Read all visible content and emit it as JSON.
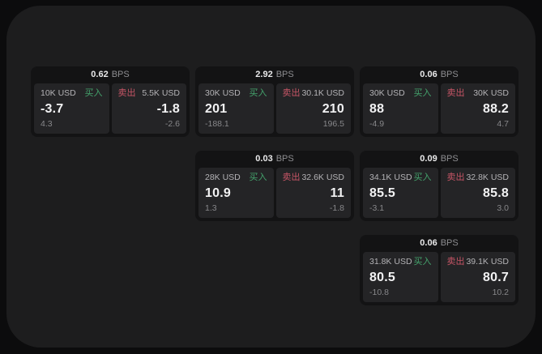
{
  "labels": {
    "bps_unit": "BPS",
    "buy": "买入",
    "sell": "卖出"
  },
  "colors": {
    "outer_bg": "#0c0c0d",
    "panel_bg": "#1d1d1e",
    "card_bg": "#131314",
    "subpanel_bg": "#242426",
    "buy_green": "#44a36c",
    "sell_red": "#c75566"
  },
  "cards": [
    {
      "row": 1,
      "col": 1,
      "bps": "0.62",
      "buy": {
        "amount": "10K USD",
        "value": "-3.7",
        "delta": "4.3"
      },
      "sell": {
        "amount": "5.5K USD",
        "value": "-1.8",
        "delta": "-2.6"
      }
    },
    {
      "row": 1,
      "col": 2,
      "bps": "2.92",
      "buy": {
        "amount": "30K USD",
        "value": "201",
        "delta": "-188.1"
      },
      "sell": {
        "amount": "30.1K USD",
        "value": "210",
        "delta": "196.5"
      }
    },
    {
      "row": 1,
      "col": 3,
      "bps": "0.06",
      "buy": {
        "amount": "30K USD",
        "value": "88",
        "delta": "-4.9"
      },
      "sell": {
        "amount": "30K USD",
        "value": "88.2",
        "delta": "4.7"
      }
    },
    {
      "row": 2,
      "col": 2,
      "bps": "0.03",
      "buy": {
        "amount": "28K USD",
        "value": "10.9",
        "delta": "1.3"
      },
      "sell": {
        "amount": "32.6K USD",
        "value": "11",
        "delta": "-1.8"
      }
    },
    {
      "row": 2,
      "col": 3,
      "bps": "0.09",
      "buy": {
        "amount": "34.1K USD",
        "value": "85.5",
        "delta": "-3.1"
      },
      "sell": {
        "amount": "32.8K USD",
        "value": "85.8",
        "delta": "3.0"
      }
    },
    {
      "row": 3,
      "col": 3,
      "bps": "0.06",
      "buy": {
        "amount": "31.8K USD",
        "value": "80.5",
        "delta": "-10.8"
      },
      "sell": {
        "amount": "39.1K USD",
        "value": "80.7",
        "delta": "10.2"
      }
    }
  ]
}
